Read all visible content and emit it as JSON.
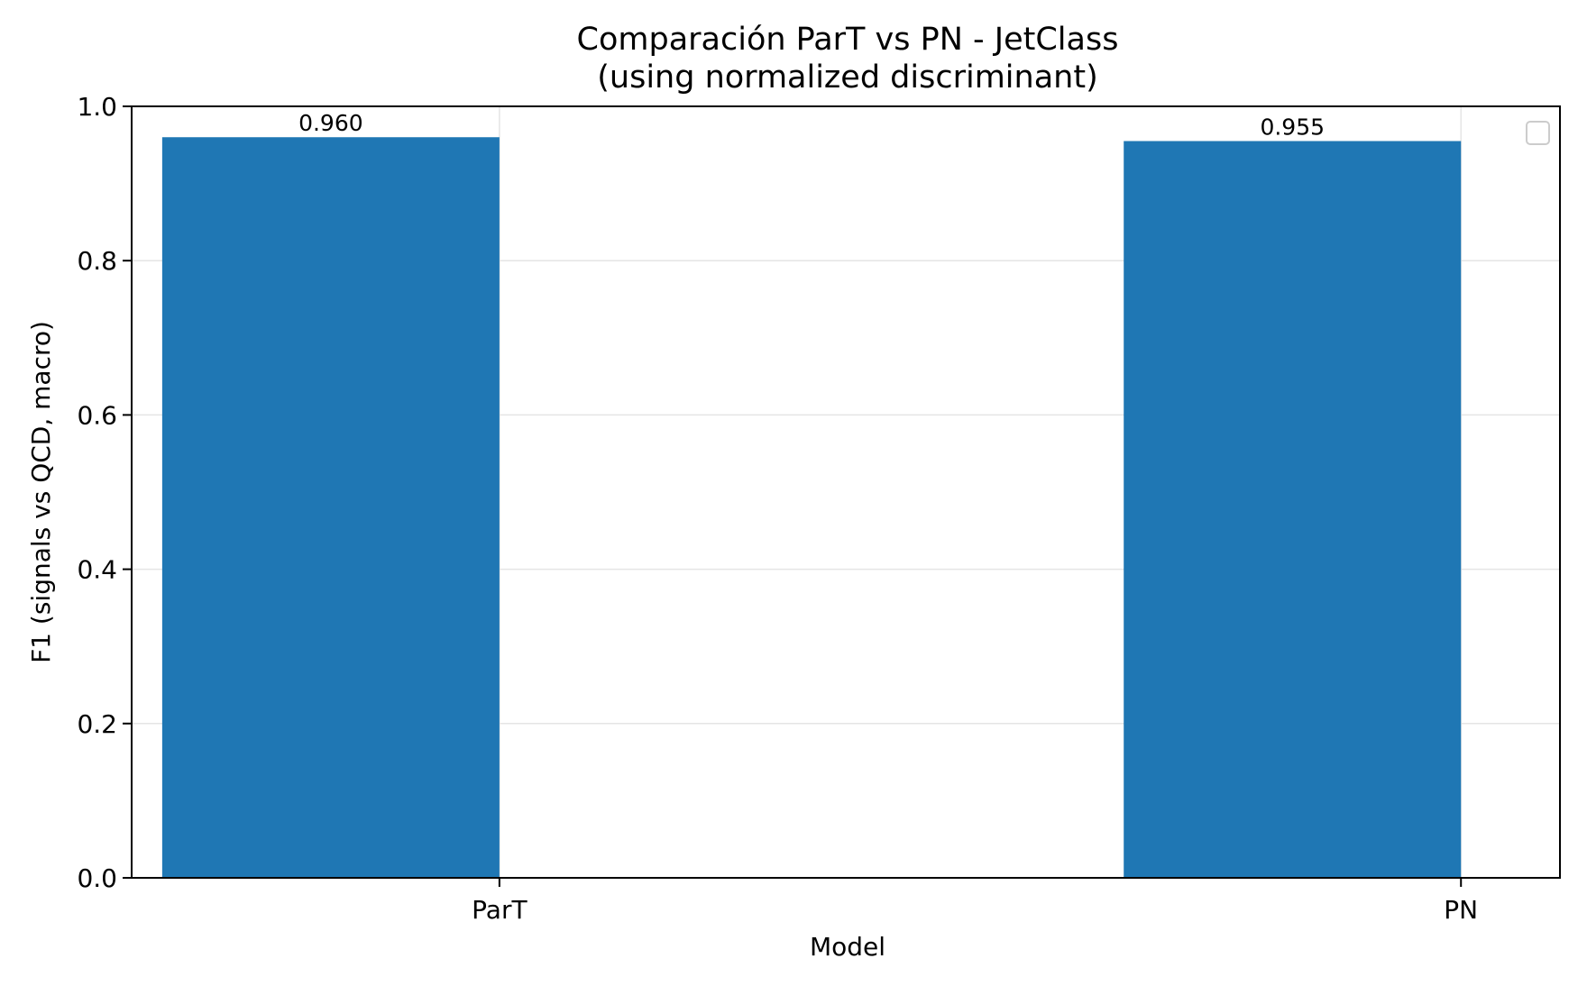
{
  "chart_data": {
    "type": "bar",
    "title": "Comparación ParT vs PN - JetClass",
    "subtitle": "(using normalized discriminant)",
    "xlabel": "Model",
    "ylabel": "F1 (signals vs QCD, macro)",
    "categories": [
      "ParT",
      "PN"
    ],
    "values": [
      0.96,
      0.955
    ],
    "value_labels": [
      "0.960",
      "0.955"
    ],
    "ylim": [
      0,
      1.0
    ],
    "yticks": [
      0.0,
      0.2,
      0.4,
      0.6,
      0.8,
      1.0
    ],
    "ytick_labels": [
      "0.0",
      "0.2",
      "0.4",
      "0.6",
      "0.8",
      "1.0"
    ],
    "grid": true,
    "legend": "top-right (empty)",
    "colors": {
      "bar": "#1f77b4",
      "grid": "#e5e5e5",
      "axis": "#000000"
    }
  }
}
